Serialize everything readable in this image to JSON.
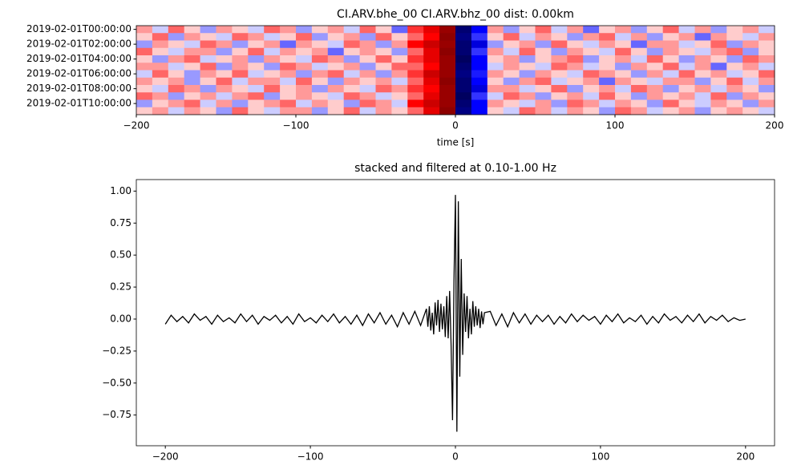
{
  "chart_data": [
    {
      "type": "heatmap",
      "title": "CI.ARV.bhe_00 CI.ARV.bhz_00  dist: 0.00km",
      "xlabel": "time [s]",
      "xlim": [
        -200,
        200
      ],
      "xticks": [
        {
          "value": -200,
          "label": "−200"
        },
        {
          "value": -100,
          "label": "−100"
        },
        0,
        100,
        200
      ],
      "ylim": [
        -0.5,
        11.5
      ],
      "y_inverted": true,
      "yticks": [
        {
          "value": 0,
          "label": "2019-02-01T00:00:00"
        },
        {
          "value": 2,
          "label": "2019-02-01T02:00:00"
        },
        {
          "value": 4,
          "label": "2019-02-01T04:00:00"
        },
        {
          "value": 6,
          "label": "2019-02-01T06:00:00"
        },
        {
          "value": 8,
          "label": "2019-02-01T08:00:00"
        },
        {
          "value": 10,
          "label": "2019-02-01T10:00:00"
        }
      ],
      "colormap": "seismic",
      "vlim": [
        -1,
        1
      ],
      "values": [
        [
          0.2,
          -0.1,
          0.3,
          0.1,
          -0.2,
          0.2,
          0.1,
          -0.1,
          0.3,
          0.2,
          -0.2,
          0.1,
          0.2,
          -0.1,
          0.3,
          0.1,
          -0.3,
          0.4,
          0.6,
          0.9,
          -0.9,
          -0.5,
          0.2,
          -0.2,
          0.1,
          0.3,
          -0.1,
          0.2,
          -0.3,
          0.1,
          0.2,
          -0.2,
          0.1,
          0.3,
          -0.1,
          0.2,
          -0.2,
          0.1,
          0.2,
          -0.1
        ],
        [
          0.1,
          0.3,
          -0.2,
          0.2,
          0.1,
          -0.1,
          0.3,
          0.2,
          -0.1,
          0.1,
          0.3,
          -0.2,
          0.1,
          0.2,
          -0.2,
          0.3,
          0.1,
          0.3,
          0.5,
          0.95,
          -0.85,
          -0.4,
          0.1,
          0.3,
          -0.1,
          0.2,
          0.1,
          -0.2,
          0.2,
          0.3,
          -0.1,
          0.2,
          -0.2,
          0.1,
          0.2,
          -0.3,
          0.2,
          0.1,
          -0.1,
          0.2
        ],
        [
          -0.2,
          0.2,
          0.1,
          -0.1,
          0.3,
          0.2,
          -0.2,
          0.1,
          0.2,
          -0.3,
          0.2,
          0.1,
          -0.1,
          0.3,
          0.2,
          -0.2,
          0.2,
          0.5,
          0.7,
          0.9,
          -0.9,
          -0.6,
          -0.2,
          0.1,
          0.2,
          -0.2,
          0.3,
          0.1,
          -0.1,
          0.2,
          0.1,
          -0.3,
          0.2,
          0.2,
          -0.1,
          0.1,
          0.3,
          -0.2,
          0.2,
          0.1
        ],
        [
          0.3,
          0.1,
          -0.1,
          0.2,
          0.2,
          -0.2,
          0.1,
          0.3,
          -0.1,
          0.2,
          0.1,
          0.2,
          -0.3,
          0.1,
          0.2,
          0.1,
          -0.2,
          0.3,
          0.6,
          0.95,
          -0.9,
          -0.4,
          0.2,
          -0.1,
          0.3,
          0.1,
          -0.2,
          0.2,
          0.1,
          -0.1,
          0.3,
          0.1,
          -0.2,
          0.2,
          0.1,
          -0.1,
          0.2,
          0.3,
          -0.2,
          0.1
        ],
        [
          0.1,
          -0.2,
          0.2,
          0.3,
          -0.1,
          0.1,
          0.2,
          -0.2,
          0.2,
          0.1,
          -0.1,
          0.3,
          0.2,
          -0.2,
          0.1,
          0.3,
          0.1,
          0.4,
          0.6,
          0.9,
          -0.95,
          -0.5,
          0.1,
          0.2,
          -0.2,
          0.1,
          0.2,
          0.3,
          -0.2,
          0.1,
          0.2,
          -0.1,
          0.3,
          0.1,
          -0.2,
          0.2,
          0.1,
          -0.2,
          0.3,
          0.2
        ],
        [
          0.2,
          0.2,
          -0.1,
          0.1,
          0.3,
          -0.2,
          0.2,
          0.1,
          -0.2,
          0.3,
          0.2,
          -0.1,
          0.1,
          0.2,
          -0.2,
          0.1,
          0.3,
          0.3,
          0.5,
          0.9,
          -0.9,
          -0.5,
          -0.1,
          0.2,
          0.1,
          -0.1,
          0.3,
          0.2,
          -0.1,
          0.1,
          -0.2,
          0.2,
          0.1,
          0.3,
          -0.1,
          0.2,
          -0.3,
          0.1,
          0.2,
          -0.1
        ],
        [
          -0.1,
          0.3,
          0.1,
          -0.2,
          0.2,
          0.1,
          0.3,
          -0.1,
          0.1,
          0.2,
          -0.2,
          0.2,
          0.3,
          -0.1,
          0.2,
          -0.2,
          0.2,
          0.4,
          0.7,
          0.9,
          -0.85,
          -0.45,
          0.2,
          0.1,
          -0.2,
          0.2,
          0.1,
          -0.1,
          0.3,
          0.2,
          0.1,
          -0.2,
          0.2,
          -0.1,
          0.3,
          0.1,
          0.2,
          -0.1,
          0.1,
          0.3
        ],
        [
          0.2,
          0.1,
          0.2,
          -0.2,
          0.1,
          0.3,
          -0.1,
          0.2,
          0.2,
          -0.1,
          0.3,
          0.1,
          -0.2,
          0.2,
          0.1,
          0.2,
          -0.1,
          0.3,
          0.6,
          0.95,
          -0.9,
          -0.5,
          0.1,
          -0.2,
          0.2,
          0.3,
          -0.1,
          0.1,
          0.2,
          -0.3,
          0.2,
          0.1,
          -0.1,
          0.2,
          0.2,
          -0.2,
          0.1,
          0.3,
          -0.1,
          0.2
        ],
        [
          0.1,
          -0.1,
          0.3,
          0.2,
          -0.2,
          0.2,
          0.1,
          -0.1,
          0.3,
          0.1,
          0.2,
          -0.2,
          0.2,
          0.1,
          -0.1,
          0.3,
          0.2,
          0.4,
          0.5,
          0.9,
          -0.9,
          -0.6,
          0.2,
          0.2,
          -0.1,
          0.1,
          0.3,
          -0.2,
          0.1,
          0.2,
          -0.1,
          0.3,
          0.2,
          -0.2,
          0.1,
          0.2,
          -0.1,
          0.2,
          0.1,
          -0.2
        ],
        [
          0.3,
          0.2,
          -0.2,
          0.1,
          0.2,
          -0.1,
          0.2,
          0.3,
          -0.2,
          0.1,
          0.2,
          0.1,
          -0.1,
          0.3,
          0.2,
          -0.1,
          0.1,
          0.3,
          0.6,
          0.9,
          -0.95,
          -0.4,
          -0.1,
          0.3,
          0.2,
          -0.2,
          0.1,
          0.2,
          -0.1,
          0.3,
          0.1,
          -0.2,
          0.2,
          0.1,
          0.2,
          -0.1,
          0.3,
          -0.2,
          0.2,
          0.1
        ],
        [
          -0.2,
          0.1,
          0.2,
          0.3,
          -0.1,
          0.2,
          -0.2,
          0.1,
          0.2,
          0.3,
          -0.1,
          0.2,
          0.1,
          -0.2,
          0.3,
          0.2,
          -0.1,
          0.5,
          0.7,
          0.9,
          -0.9,
          -0.5,
          0.2,
          0.1,
          -0.1,
          0.2,
          -0.2,
          0.3,
          0.2,
          -0.1,
          0.2,
          0.1,
          -0.2,
          0.3,
          0.1,
          -0.1,
          0.2,
          0.1,
          -0.2,
          0.2
        ],
        [
          0.1,
          0.2,
          -0.1,
          0.2,
          0.1,
          -0.2,
          0.3,
          0.1,
          -0.1,
          0.2,
          0.2,
          -0.2,
          0.1,
          0.3,
          -0.1,
          0.2,
          0.1,
          0.3,
          0.6,
          0.95,
          -0.85,
          -0.5,
          0.1,
          -0.1,
          0.3,
          0.2,
          -0.1,
          0.2,
          0.1,
          -0.2,
          0.3,
          0.2,
          -0.1,
          0.1,
          0.2,
          -0.2,
          0.1,
          0.2,
          0.1,
          -0.1
        ]
      ]
    },
    {
      "type": "line",
      "title": "stacked and filtered at 0.10-1.00 Hz",
      "color": "#000000",
      "xlim": [
        -220,
        220
      ],
      "xticks": [
        {
          "value": -200,
          "label": "−200"
        },
        {
          "value": -100,
          "label": "−100"
        },
        0,
        100,
        200
      ],
      "ylim": [
        -0.99,
        1.09
      ],
      "yticks": [
        {
          "value": -0.75,
          "label": "−0.75"
        },
        {
          "value": -0.5,
          "label": "−0.50"
        },
        {
          "value": -0.25,
          "label": "−0.25"
        },
        {
          "value": 0,
          "label": "0.00"
        },
        {
          "value": 0.25,
          "label": "0.25"
        },
        {
          "value": 0.5,
          "label": "0.50"
        },
        {
          "value": 0.75,
          "label": "0.75"
        },
        {
          "value": 1,
          "label": "1.00"
        }
      ],
      "x": [
        -200,
        -196,
        -192,
        -188,
        -184,
        -180,
        -176,
        -172,
        -168,
        -164,
        -160,
        -156,
        -152,
        -148,
        -144,
        -140,
        -136,
        -132,
        -128,
        -124,
        -120,
        -116,
        -112,
        -108,
        -104,
        -100,
        -96,
        -92,
        -88,
        -84,
        -80,
        -76,
        -72,
        -68,
        -64,
        -60,
        -56,
        -52,
        -48,
        -44,
        -40,
        -36,
        -32,
        -28,
        -24,
        -20,
        -19,
        -18,
        -17,
        -16,
        -15,
        -14,
        -13,
        -12,
        -11,
        -10,
        -9,
        -8,
        -7,
        -6,
        -5,
        -4,
        -3,
        -2,
        -1,
        0,
        1,
        2,
        3,
        4,
        5,
        6,
        7,
        8,
        9,
        10,
        11,
        12,
        13,
        14,
        15,
        16,
        17,
        18,
        19,
        20,
        24,
        28,
        32,
        36,
        40,
        44,
        48,
        52,
        56,
        60,
        64,
        68,
        72,
        76,
        80,
        84,
        88,
        92,
        96,
        100,
        104,
        108,
        112,
        116,
        120,
        124,
        128,
        132,
        136,
        140,
        144,
        148,
        152,
        156,
        160,
        164,
        168,
        172,
        176,
        180,
        184,
        188,
        192,
        196,
        200
      ],
      "values": [
        -0.04,
        0.03,
        -0.02,
        0.02,
        -0.03,
        0.04,
        -0.01,
        0.02,
        -0.04,
        0.03,
        -0.02,
        0.01,
        -0.03,
        0.04,
        -0.02,
        0.03,
        -0.04,
        0.02,
        -0.01,
        0.03,
        -0.03,
        0.02,
        -0.04,
        0.04,
        -0.02,
        0.01,
        -0.03,
        0.03,
        -0.02,
        0.04,
        -0.03,
        0.02,
        -0.04,
        0.03,
        -0.05,
        0.04,
        -0.03,
        0.05,
        -0.04,
        0.03,
        -0.06,
        0.05,
        -0.04,
        0.06,
        -0.05,
        0.08,
        -0.06,
        0.1,
        -0.09,
        0.05,
        -0.12,
        0.13,
        -0.05,
        0.15,
        -0.1,
        0.12,
        -0.08,
        0.1,
        -0.14,
        0.18,
        -0.15,
        0.22,
        -0.2,
        -0.79,
        0.3,
        0.97,
        -0.88,
        0.92,
        -0.45,
        0.47,
        -0.28,
        0.2,
        -0.1,
        0.18,
        -0.15,
        0.08,
        -0.12,
        0.14,
        -0.06,
        0.1,
        -0.05,
        0.08,
        -0.07,
        0.06,
        -0.04,
        0.05,
        0.06,
        -0.05,
        0.04,
        -0.06,
        0.05,
        -0.03,
        0.04,
        -0.04,
        0.03,
        -0.02,
        0.03,
        -0.04,
        0.02,
        -0.03,
        0.04,
        -0.02,
        0.03,
        -0.01,
        0.02,
        -0.04,
        0.03,
        -0.02,
        0.04,
        -0.03,
        0.01,
        -0.02,
        0.03,
        -0.04,
        0.02,
        -0.03,
        0.04,
        -0.01,
        0.02,
        -0.03,
        0.03,
        -0.02,
        0.04,
        -0.03,
        0.02,
        -0.01,
        0.03,
        -0.02,
        0.01,
        -0.01,
        0
      ]
    }
  ]
}
